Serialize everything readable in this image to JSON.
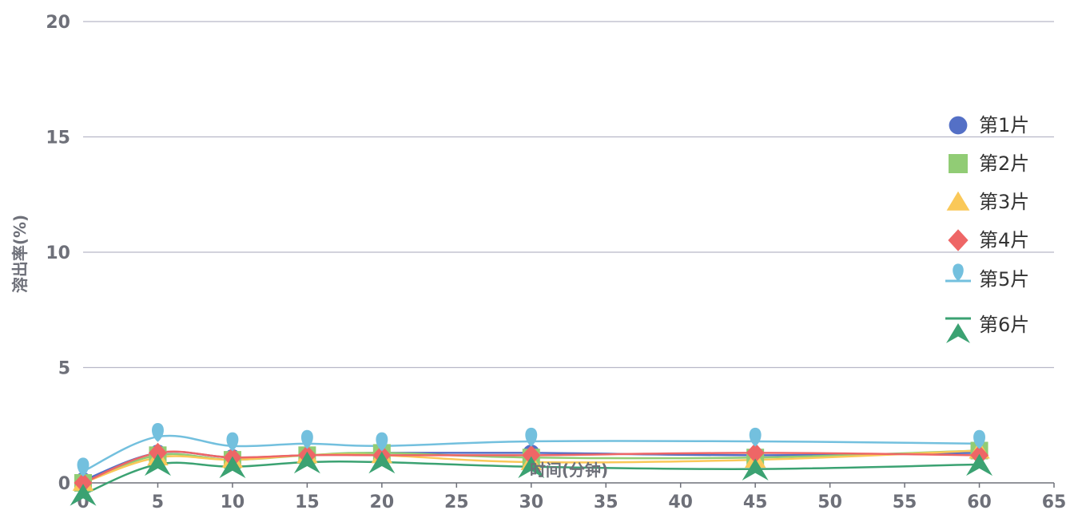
{
  "chart_data": {
    "type": "line",
    "title": "",
    "xlabel": "时间(分钟)",
    "ylabel": "溶出率(%)",
    "x": [
      0,
      5,
      10,
      15,
      20,
      30,
      45,
      60
    ],
    "xlim": [
      0,
      65
    ],
    "ylim": [
      0,
      20
    ],
    "xticks": [
      0,
      5,
      10,
      15,
      20,
      25,
      30,
      35,
      40,
      45,
      50,
      55,
      60,
      65
    ],
    "yticks": [
      0,
      5,
      10,
      15,
      20
    ],
    "grid": true,
    "legend_position": "right",
    "series": [
      {
        "name": "第1片",
        "color": "#5470c6",
        "marker": "circle",
        "values": [
          0.1,
          1.3,
          1.1,
          1.2,
          1.3,
          1.3,
          1.2,
          1.3
        ]
      },
      {
        "name": "第2片",
        "color": "#91cc75",
        "marker": "square",
        "values": [
          0.0,
          1.2,
          1.0,
          1.2,
          1.3,
          1.1,
          1.1,
          1.4
        ]
      },
      {
        "name": "第3片",
        "color": "#fac858",
        "marker": "triangle",
        "values": [
          0.0,
          1.1,
          1.0,
          1.2,
          1.2,
          0.9,
          1.0,
          1.4
        ]
      },
      {
        "name": "第4片",
        "color": "#ee6666",
        "marker": "diamond",
        "values": [
          0.0,
          1.3,
          1.1,
          1.2,
          1.2,
          1.2,
          1.3,
          1.2
        ]
      },
      {
        "name": "第5片",
        "color": "#73c0de",
        "marker": "pin",
        "values": [
          0.5,
          2.0,
          1.6,
          1.7,
          1.6,
          1.8,
          1.8,
          1.7
        ]
      },
      {
        "name": "第6片",
        "color": "#3ba272",
        "marker": "arrow",
        "values": [
          -0.5,
          0.8,
          0.7,
          0.9,
          0.9,
          0.7,
          0.6,
          0.8
        ]
      }
    ]
  }
}
